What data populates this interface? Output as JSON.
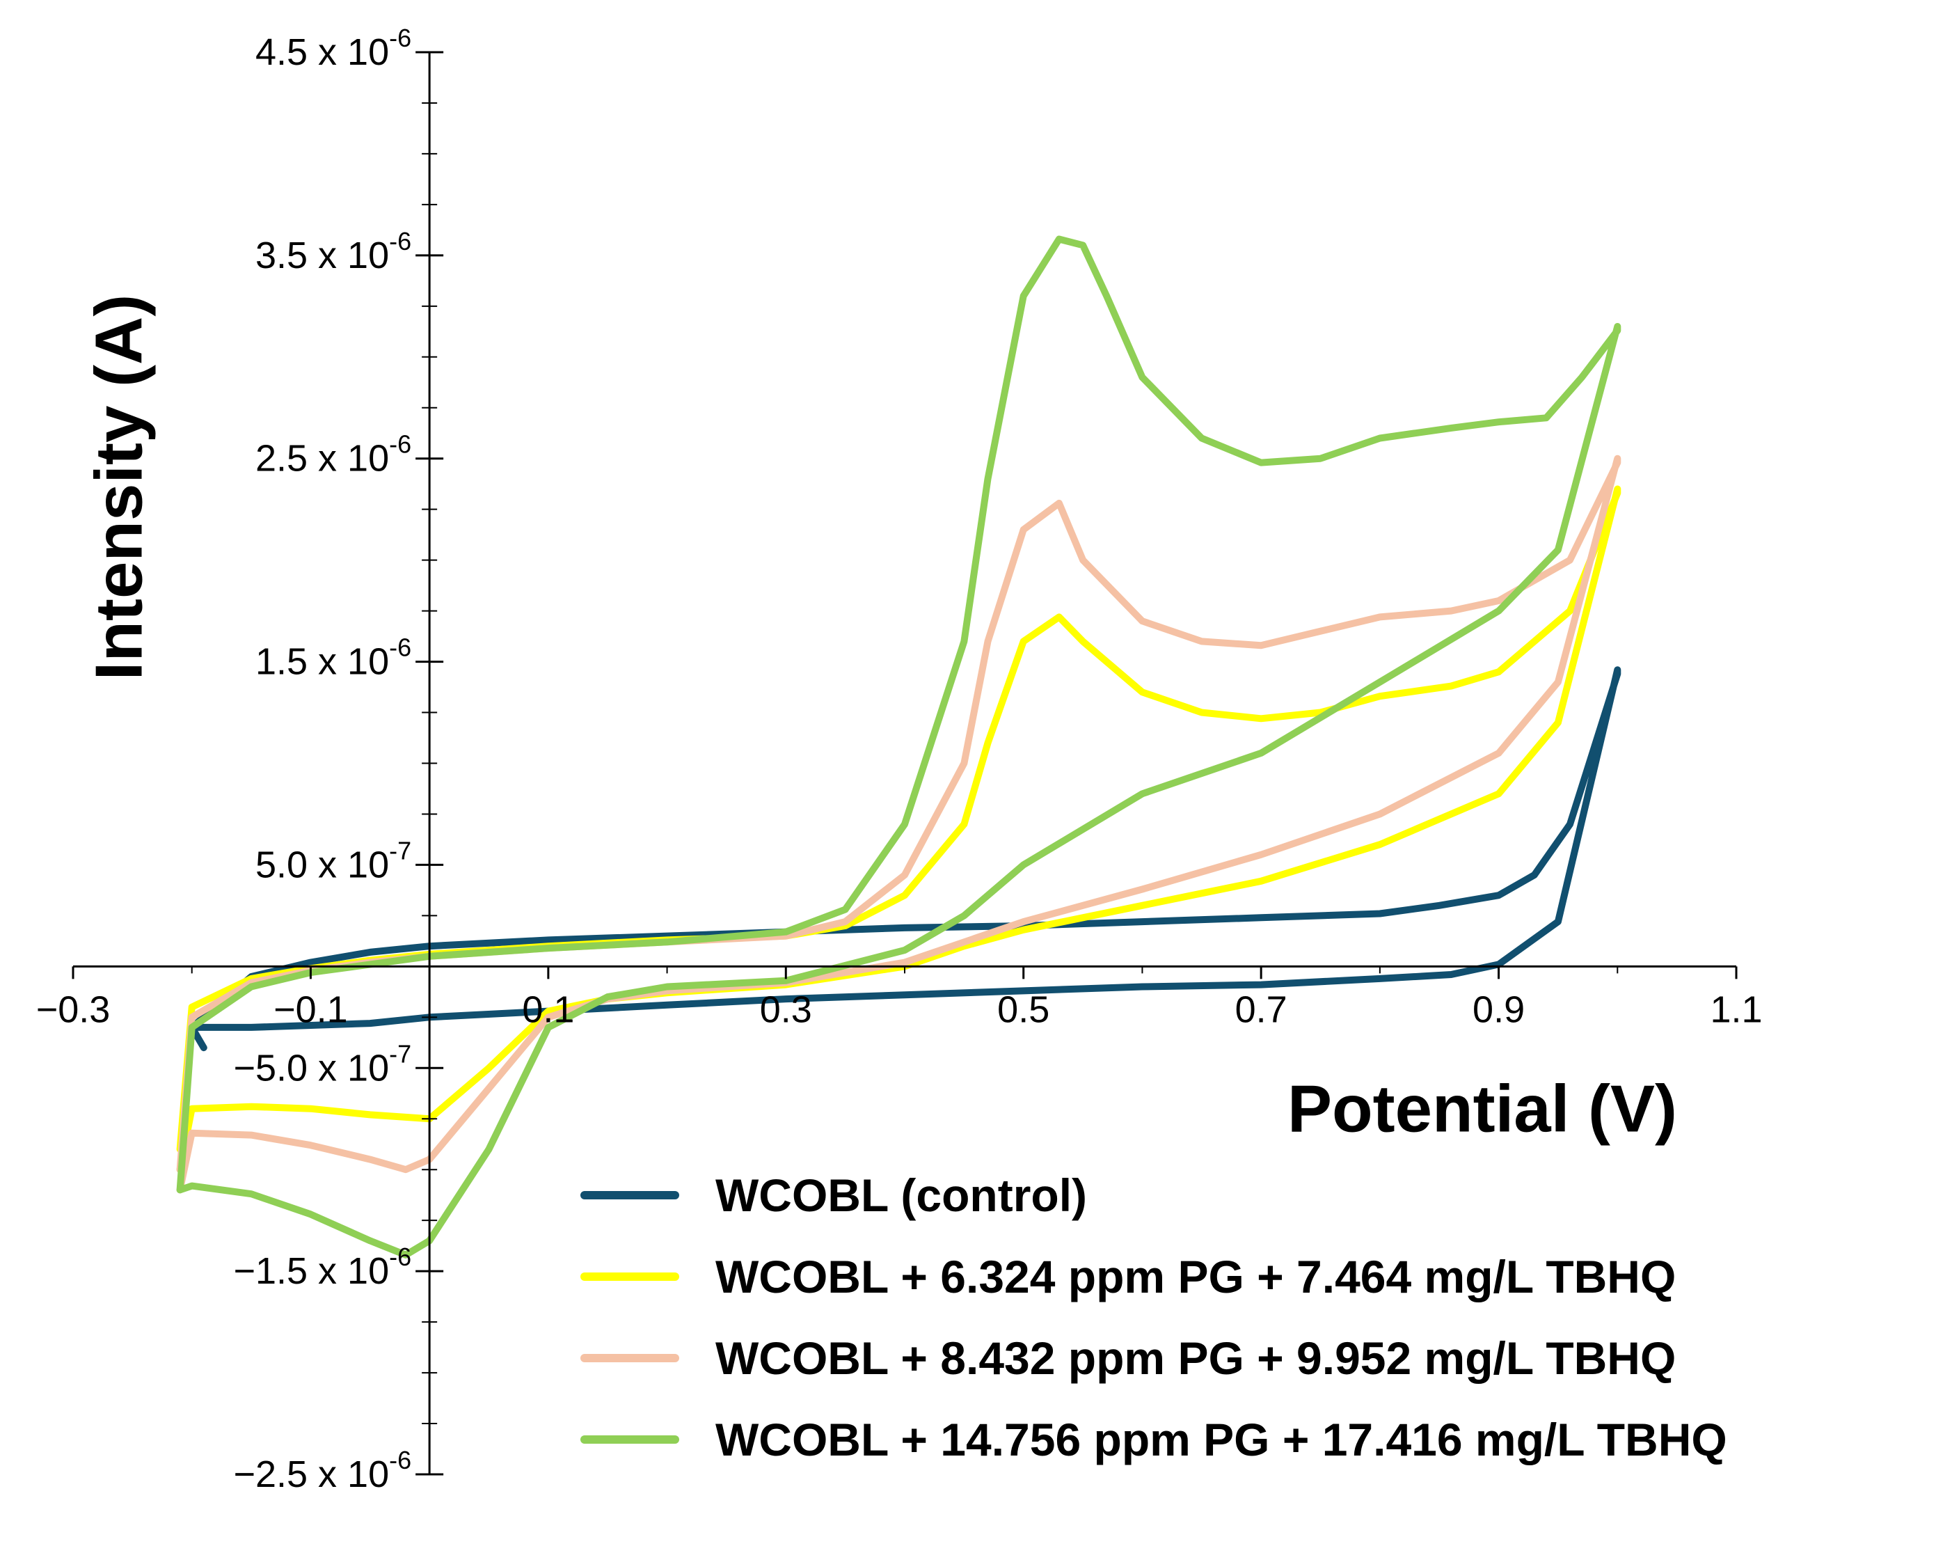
{
  "chart_data": {
    "type": "line",
    "title": "",
    "xlabel": "Potential (V)",
    "ylabel": "Intensity (A)",
    "xlim": [
      -0.3,
      1.1
    ],
    "ylim": [
      -2.5e-06,
      4.5e-06
    ],
    "grid": false,
    "legend_position": "bottom-right",
    "x_ticks": [
      {
        "value": -0.3,
        "label": "−0.3"
      },
      {
        "value": -0.1,
        "label": "−0.1"
      },
      {
        "value": 0.1,
        "label": "0.1"
      },
      {
        "value": 0.3,
        "label": "0.3"
      },
      {
        "value": 0.5,
        "label": "0.5"
      },
      {
        "value": 0.7,
        "label": "0.7"
      },
      {
        "value": 0.9,
        "label": "0.9"
      },
      {
        "value": 1.1,
        "label": "1.1"
      }
    ],
    "y_ticks": [
      {
        "value": 4.5e-06,
        "mantissa": "4.5",
        "exponent": "-6"
      },
      {
        "value": 3.5e-06,
        "mantissa": "3.5",
        "exponent": "-6"
      },
      {
        "value": 2.5e-06,
        "mantissa": "2.5",
        "exponent": "-6"
      },
      {
        "value": 1.5e-06,
        "mantissa": "1.5",
        "exponent": "-6"
      },
      {
        "value": 5e-07,
        "mantissa": "5.0",
        "exponent": "-7"
      },
      {
        "value": -5e-07,
        "mantissa": "−5.0",
        "exponent": "-7"
      },
      {
        "value": -1.5e-06,
        "mantissa": "−1.5",
        "exponent": "-6"
      },
      {
        "value": -2.5e-06,
        "mantissa": "−2.5",
        "exponent": "-6"
      }
    ],
    "times_sign": "x 10",
    "series": [
      {
        "name": "WCOBL (control)",
        "color": "#114f6f",
        "x": [
          -0.2,
          -0.15,
          -0.1,
          -0.05,
          0.0,
          0.1,
          0.2,
          0.3,
          0.4,
          0.5,
          0.6,
          0.7,
          0.8,
          0.86,
          0.9,
          0.95,
          1.0,
          1.0,
          0.96,
          0.93,
          0.9,
          0.85,
          0.8,
          0.7,
          0.6,
          0.5,
          0.4,
          0.3,
          0.2,
          0.1,
          0.0,
          -0.05,
          -0.1,
          -0.15,
          -0.2,
          -0.19
        ],
        "y": [
          -3e-07,
          -3e-07,
          -2.9e-07,
          -2.8e-07,
          -2.5e-07,
          -2.2e-07,
          -1.9e-07,
          -1.6e-07,
          -1.4e-07,
          -1.2e-07,
          -1e-07,
          -9e-08,
          -6e-08,
          -4e-08,
          1e-08,
          2.2e-07,
          1.46e-06,
          1.44e-06,
          7e-07,
          4.5e-07,
          3.5e-07,
          3e-07,
          2.6e-07,
          2.4e-07,
          2.2e-07,
          2e-07,
          1.9e-07,
          1.7e-07,
          1.5e-07,
          1.3e-07,
          1e-07,
          7e-08,
          2e-08,
          -5e-08,
          -3e-07,
          -4e-07
        ]
      },
      {
        "name": "WCOBL + 6.324 ppm PG + 7.464 mg/L TBHQ",
        "color": "#ffff00",
        "x": [
          -0.21,
          -0.2,
          -0.15,
          -0.1,
          -0.05,
          0.0,
          0.05,
          0.1,
          0.15,
          0.2,
          0.3,
          0.4,
          0.45,
          0.5,
          0.6,
          0.7,
          0.8,
          0.9,
          0.95,
          1.0,
          1.0,
          0.96,
          0.9,
          0.86,
          0.8,
          0.75,
          0.7,
          0.65,
          0.6,
          0.55,
          0.53,
          0.5,
          0.47,
          0.45,
          0.4,
          0.35,
          0.3,
          0.2,
          0.1,
          0.0,
          -0.05,
          -0.1,
          -0.15,
          -0.2,
          -0.21
        ],
        "y": [
          -1e-06,
          -7e-07,
          -6.9e-07,
          -7e-07,
          -7.3e-07,
          -7.5e-07,
          -5e-07,
          -2.2e-07,
          -1.6e-07,
          -1.3e-07,
          -9e-08,
          0.0,
          1e-07,
          1.8e-07,
          3e-07,
          4.2e-07,
          6e-07,
          8.5e-07,
          1.2e-06,
          2.35e-06,
          2.33e-06,
          1.75e-06,
          1.45e-06,
          1.38e-06,
          1.33e-06,
          1.25e-06,
          1.22e-06,
          1.25e-06,
          1.35e-06,
          1.6e-06,
          1.72e-06,
          1.6e-06,
          1.1e-06,
          7e-07,
          3.5e-07,
          2e-07,
          1.5e-07,
          1.3e-07,
          1e-07,
          6e-08,
          3e-08,
          -1e-08,
          -6e-08,
          -2e-07,
          -9e-07
        ]
      },
      {
        "name": "WCOBL + 8.432 ppm PG + 9.952 mg/L TBHQ",
        "color": "#f5c1a4",
        "x": [
          -0.21,
          -0.2,
          -0.15,
          -0.1,
          -0.05,
          -0.02,
          0.0,
          0.05,
          0.1,
          0.15,
          0.2,
          0.3,
          0.4,
          0.45,
          0.5,
          0.6,
          0.7,
          0.8,
          0.9,
          0.95,
          1.0,
          1.0,
          0.96,
          0.9,
          0.86,
          0.8,
          0.75,
          0.7,
          0.65,
          0.6,
          0.55,
          0.53,
          0.5,
          0.47,
          0.45,
          0.4,
          0.35,
          0.3,
          0.2,
          0.1,
          0.0,
          -0.05,
          -0.1,
          -0.15,
          -0.2,
          -0.21
        ],
        "y": [
          -1.1e-06,
          -8.2e-07,
          -8.3e-07,
          -8.8e-07,
          -9.5e-07,
          -1e-06,
          -9.5e-07,
          -6e-07,
          -2.5e-07,
          -1.6e-07,
          -1.2e-07,
          -8e-08,
          2e-08,
          1.2e-07,
          2.2e-07,
          3.8e-07,
          5.5e-07,
          7.5e-07,
          1.05e-06,
          1.4e-06,
          2.5e-06,
          2.48e-06,
          2e-06,
          1.8e-06,
          1.75e-06,
          1.72e-06,
          1.65e-06,
          1.58e-06,
          1.6e-06,
          1.7e-06,
          2e-06,
          2.28e-06,
          2.15e-06,
          1.6e-06,
          1e-06,
          4.5e-07,
          2.2e-07,
          1.5e-07,
          1.2e-07,
          9e-08,
          5e-08,
          2e-08,
          -2e-08,
          -8e-08,
          -2.5e-07,
          -1e-06
        ]
      },
      {
        "name": "WCOBL + 14.756 ppm PG + 17.416 mg/L TBHQ",
        "color": "#8fcf55",
        "x": [
          -0.21,
          -0.2,
          -0.15,
          -0.1,
          -0.05,
          -0.02,
          0.0,
          0.05,
          0.1,
          0.15,
          0.2,
          0.3,
          0.4,
          0.45,
          0.5,
          0.6,
          0.7,
          0.8,
          0.9,
          0.95,
          1.0,
          1.0,
          0.97,
          0.94,
          0.9,
          0.86,
          0.8,
          0.75,
          0.7,
          0.65,
          0.6,
          0.57,
          0.55,
          0.53,
          0.5,
          0.47,
          0.45,
          0.4,
          0.35,
          0.3,
          0.2,
          0.1,
          0.0,
          -0.05,
          -0.1,
          -0.15,
          -0.2,
          -0.21
        ],
        "y": [
          -1.1e-06,
          -1.08e-06,
          -1.12e-06,
          -1.22e-06,
          -1.35e-06,
          -1.42e-06,
          -1.35e-06,
          -9e-07,
          -3e-07,
          -1.5e-07,
          -1e-07,
          -7e-08,
          8e-08,
          2.5e-07,
          5e-07,
          8.5e-07,
          1.05e-06,
          1.4e-06,
          1.75e-06,
          2.05e-06,
          3.15e-06,
          3.13e-06,
          2.9e-06,
          2.7e-06,
          2.68e-06,
          2.65e-06,
          2.6e-06,
          2.5e-06,
          2.48e-06,
          2.6e-06,
          2.9e-06,
          3.3e-06,
          3.55e-06,
          3.58e-06,
          3.3e-06,
          2.4e-06,
          1.6e-06,
          7e-07,
          2.8e-07,
          1.7e-07,
          1.2e-07,
          9e-08,
          5e-08,
          1e-08,
          -3e-08,
          -1e-07,
          -3e-07,
          -1.1e-06
        ]
      }
    ]
  }
}
